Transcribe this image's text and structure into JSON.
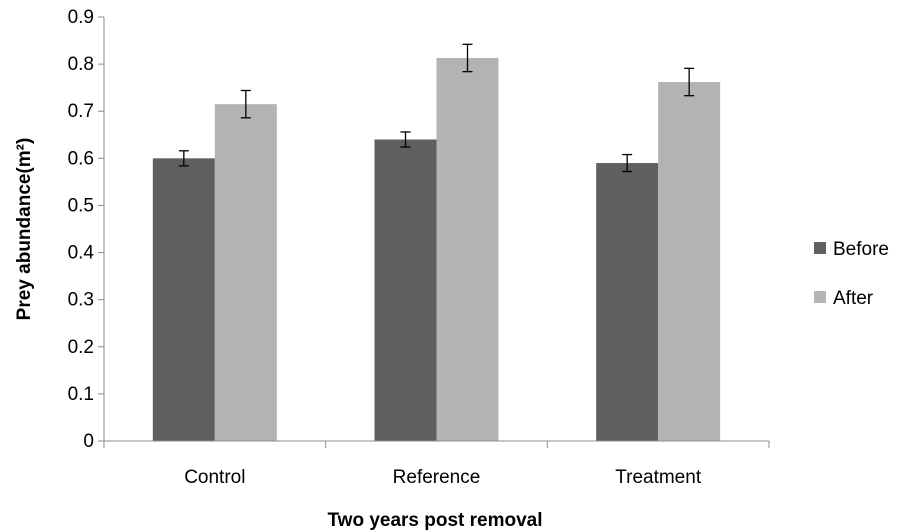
{
  "chart_data": {
    "type": "bar",
    "title": "",
    "xlabel": "Two years post removal",
    "ylabel": "Prey abundance(m²)",
    "categories": [
      "Control",
      "Reference",
      "Treatment"
    ],
    "series": [
      {
        "name": "Before",
        "values": [
          0.6,
          0.64,
          0.59
        ],
        "errors": [
          0.016,
          0.016,
          0.018
        ],
        "color": "#5f5f5f"
      },
      {
        "name": "After",
        "values": [
          0.715,
          0.813,
          0.762
        ],
        "errors": [
          0.029,
          0.029,
          0.029
        ],
        "color": "#b3b3b3"
      }
    ],
    "ylim": [
      0,
      0.9
    ],
    "yticks": [
      "0",
      "0.1",
      "0.2",
      "0.3",
      "0.4",
      "0.5",
      "0.6",
      "0.7",
      "0.8",
      "0.9"
    ],
    "grid": false,
    "legend_position": "right"
  }
}
